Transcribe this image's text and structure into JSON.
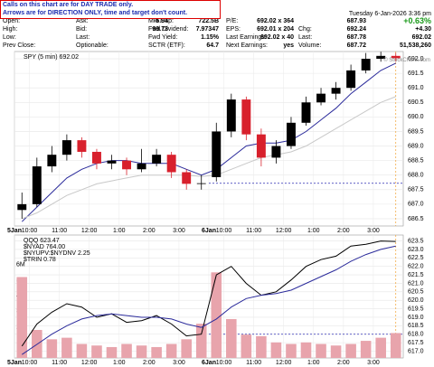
{
  "header": {
    "notice": [
      "Calls on this chart are for DAY TRADE only.",
      "Arrows are for DIRECTION ONLY, time and target don't count."
    ],
    "quote": {
      "rows": [
        [
          [
            "Open:",
            "687.93"
          ],
          [
            "Ask:",
            "692.02 x 364"
          ],
          [
            "Mkt Cap:",
            "722.5B"
          ],
          [
            "P/E:",
            "6.94"
          ]
        ],
        [
          [
            "High:",
            "692.24"
          ],
          [
            "Bid:",
            "692.01 x 204"
          ],
          [
            "Fwd Dividend:",
            "7.97347"
          ],
          [
            "EPS:",
            "99.73"
          ]
        ],
        [
          [
            "Low:",
            "687.78"
          ],
          [
            "Last:",
            "692.02 x 40"
          ],
          [
            "Fwd Yield:",
            "1.15%"
          ],
          [
            "Last Earnings:"
          ]
        ],
        [
          [
            "Prev Close:",
            "687.72"
          ],
          [
            "Optionable:",
            "yes"
          ],
          [
            "SCTR (ETF):",
            "64.7"
          ],
          [
            "Next Earnings:"
          ]
        ]
      ]
    },
    "date": "Tuesday  6-Jan-2026  3:36 pm",
    "change_pct": "+0.63%",
    "side": [
      [
        "Chg:",
        "+4.30"
      ],
      [
        "Last:",
        "692.02"
      ],
      [
        "Volume:",
        "51,538,260"
      ]
    ],
    "watermark": "© StockCharts.com"
  },
  "chart_data": [
    {
      "type": "candlestick",
      "legend": [
        "SPY (5 min) 692.02"
      ],
      "categories": [
        "5Jan",
        "10:00",
        null,
        "11:00",
        null,
        "12:00",
        null,
        "1:00",
        null,
        "2:00",
        null,
        "3:00",
        null,
        "6Jan",
        "10:00",
        null,
        "11:00",
        null,
        "12:00",
        null,
        "1:00",
        null,
        "2:00",
        null,
        "3:00",
        null
      ],
      "open": [
        686.8,
        687.0,
        688.3,
        688.7,
        689.2,
        688.8,
        688.4,
        688.5,
        688.2,
        688.4,
        688.7,
        688.1,
        687.7,
        687.93,
        689.5,
        690.6,
        689.4,
        688.6,
        689.0,
        689.8,
        690.5,
        690.8,
        691.0,
        691.6,
        692.0,
        692.1
      ],
      "high": [
        687.4,
        688.6,
        689.0,
        689.4,
        689.3,
        688.9,
        688.7,
        688.6,
        688.9,
        688.9,
        688.8,
        688.2,
        688.0,
        689.8,
        690.8,
        690.7,
        689.6,
        689.2,
        690.0,
        690.7,
        691.0,
        691.2,
        691.8,
        692.2,
        692.24,
        692.2
      ],
      "low": [
        686.5,
        686.9,
        688.1,
        688.5,
        688.6,
        688.2,
        688.2,
        688.0,
        688.1,
        688.3,
        687.9,
        687.5,
        687.5,
        687.78,
        689.3,
        689.2,
        688.3,
        688.4,
        688.9,
        689.7,
        690.4,
        690.6,
        690.9,
        691.5,
        691.9,
        691.9
      ],
      "close": [
        687.0,
        688.3,
        688.7,
        689.2,
        688.8,
        688.4,
        688.5,
        688.2,
        688.4,
        688.7,
        688.1,
        687.7,
        687.72,
        689.5,
        690.6,
        689.4,
        688.6,
        689.0,
        689.8,
        690.5,
        690.8,
        691.0,
        691.6,
        692.0,
        692.1,
        692.02
      ],
      "up_color": "#000000",
      "down_color": "#d8202c",
      "series": [
        {
          "color": "#2b2b9b",
          "values": [
            686.4,
            686.9,
            687.4,
            687.9,
            688.2,
            688.4,
            688.5,
            688.5,
            688.4,
            688.4,
            688.4,
            688.2,
            688.0,
            688.2,
            688.6,
            689.0,
            689.1,
            689.1,
            689.2,
            689.5,
            689.9,
            690.3,
            690.8,
            691.2,
            691.6,
            691.85
          ]
        },
        {
          "color": "#c8c8c8",
          "values": [
            686.5,
            686.7,
            687.0,
            687.3,
            687.5,
            687.7,
            687.8,
            687.9,
            688.0,
            688.0,
            688.0,
            688.0,
            687.95,
            688.0,
            688.2,
            688.4,
            688.6,
            688.7,
            688.8,
            689.0,
            689.3,
            689.6,
            689.9,
            690.2,
            690.5,
            690.7
          ]
        }
      ],
      "reference_line": 687.72,
      "ylim": [
        686.25,
        692.25
      ],
      "yticks": [
        686.5,
        {
          "value": 687,
          "label": "687.0"
        },
        687.5,
        {
          "value": 688,
          "label": "688.0"
        },
        688.5,
        {
          "value": 689,
          "label": "689.0"
        },
        689.5,
        {
          "value": 690,
          "label": "690.0"
        },
        690.5,
        {
          "value": 691,
          "label": "691.0"
        },
        691.5,
        {
          "value": 692,
          "label": "692.0"
        }
      ],
      "grid": true
    },
    {
      "type": "combo",
      "legend": [
        "QQQ 623.47",
        "$NYAD 764.00",
        "$NYUPV:$NYDNV 2.25",
        "$TRIN 0.78"
      ],
      "categories": [
        "5Jan",
        "10:00",
        null,
        "11:00",
        null,
        "12:00",
        null,
        "1:00",
        null,
        "2:00",
        null,
        "3:00",
        null,
        "6Jan",
        "10:00",
        null,
        "11:00",
        null,
        "12:00",
        null,
        "1:00",
        null,
        "2:00",
        null,
        "3:00",
        null
      ],
      "volume": {
        "color": "#e8a4ac",
        "values": [
          5200000,
          1800000,
          1200000,
          1300000,
          900000,
          800000,
          700000,
          900000,
          800000,
          700000,
          900000,
          1200000,
          2200000,
          5500000,
          2500000,
          1500000,
          1400000,
          1000000,
          900000,
          1000000,
          900000,
          800000,
          900000,
          1100000,
          1300000,
          1600000
        ]
      },
      "series": [
        {
          "color": "#000000",
          "axis": "y2",
          "values": [
            617.3,
            618.6,
            619.3,
            619.8,
            619.6,
            619.0,
            619.2,
            618.7,
            618.8,
            619.1,
            618.6,
            617.9,
            618.0,
            621.5,
            622.0,
            621.0,
            620.3,
            620.5,
            621.2,
            622.0,
            622.4,
            622.6,
            623.2,
            623.3,
            623.5,
            623.47
          ]
        },
        {
          "color": "#2b2b9b",
          "axis": "y2",
          "values": [
            616.8,
            617.4,
            618.0,
            618.5,
            618.9,
            619.1,
            619.2,
            619.1,
            619.0,
            619.0,
            618.9,
            618.6,
            618.4,
            618.9,
            619.6,
            620.1,
            620.3,
            620.4,
            620.6,
            621.0,
            621.4,
            621.8,
            622.3,
            622.7,
            623.0,
            623.2
          ]
        }
      ],
      "reference_line": 618,
      "ylim": [
        0,
        7900000
      ],
      "yticks": [
        {
          "value": 1000000,
          "label": "1M"
        },
        {
          "value": 2000000,
          "label": "2M"
        },
        {
          "value": 3000000,
          "label": "3M"
        },
        {
          "value": 4000000,
          "label": "4M"
        },
        {
          "value": 5000000,
          "label": "5M"
        },
        {
          "value": 6000000,
          "label": "6M"
        }
      ],
      "y2lim": [
        616.6,
        623.85
      ],
      "y2ticks": [
        {
          "value": 617,
          "label": "617.0"
        },
        617.5,
        {
          "value": 618,
          "label": "618.0"
        },
        618.5,
        {
          "value": 619,
          "label": "619.0"
        },
        619.5,
        {
          "value": 620,
          "label": "620.0"
        },
        620.5,
        {
          "value": 621,
          "label": "621.0"
        },
        621.5,
        {
          "value": 622,
          "label": "622.0"
        },
        622.5,
        {
          "value": 623,
          "label": "623.0"
        },
        623.5
      ],
      "grid": true
    }
  ]
}
